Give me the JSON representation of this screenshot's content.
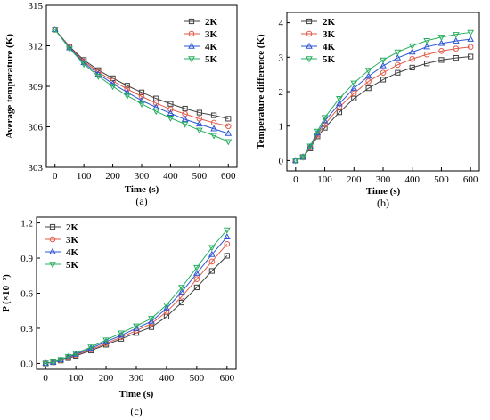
{
  "chart_data": [
    {
      "type": "line",
      "panel_label": "(a)",
      "xlabel": "Time (s)",
      "ylabel": "Average temperature (K)",
      "xlim": [
        -30,
        630
      ],
      "ylim": [
        303,
        315
      ],
      "xticks": [
        0,
        100,
        200,
        300,
        400,
        500,
        600
      ],
      "yticks": [
        303,
        306,
        309,
        312,
        315
      ],
      "ytick_labels": [
        "303",
        "306",
        "309",
        "312",
        "315"
      ],
      "legend_position": "top-right",
      "series": [
        {
          "name": "2K",
          "color": "#404040",
          "marker": "square",
          "x": [
            0,
            50,
            100,
            150,
            200,
            250,
            300,
            350,
            400,
            450,
            500,
            550,
            600
          ],
          "y": [
            313.2,
            311.95,
            310.95,
            310.2,
            309.6,
            309.05,
            308.55,
            308.1,
            307.7,
            307.35,
            307.05,
            306.85,
            306.6
          ]
        },
        {
          "name": "3K",
          "color": "#e05a4a",
          "marker": "circle",
          "x": [
            0,
            50,
            100,
            150,
            200,
            250,
            300,
            350,
            400,
            450,
            500,
            550,
            600
          ],
          "y": [
            313.2,
            311.9,
            310.85,
            310.05,
            309.4,
            308.8,
            308.25,
            307.75,
            307.3,
            306.95,
            306.6,
            306.3,
            306.05
          ]
        },
        {
          "name": "4K",
          "color": "#2b55d6",
          "marker": "triangle-up",
          "x": [
            0,
            50,
            100,
            150,
            200,
            250,
            300,
            350,
            400,
            450,
            500,
            550,
            600
          ],
          "y": [
            313.2,
            311.85,
            310.75,
            309.9,
            309.2,
            308.55,
            307.95,
            307.45,
            307.0,
            306.55,
            306.2,
            305.85,
            305.5
          ]
        },
        {
          "name": "5K",
          "color": "#27ae5f",
          "marker": "triangle-down",
          "x": [
            0,
            50,
            100,
            150,
            200,
            250,
            300,
            350,
            400,
            450,
            500,
            550,
            600
          ],
          "y": [
            313.2,
            311.8,
            310.65,
            309.75,
            309.0,
            308.3,
            307.7,
            307.15,
            306.65,
            306.2,
            305.75,
            305.35,
            304.9
          ]
        }
      ]
    },
    {
      "type": "line",
      "panel_label": "(b)",
      "xlabel": "Time (s)",
      "ylabel": "Temperature difference (K)",
      "xlim": [
        -30,
        630
      ],
      "ylim": [
        -0.3,
        4.3
      ],
      "xticks": [
        0,
        100,
        200,
        300,
        400,
        500,
        600
      ],
      "yticks": [
        0,
        1,
        2,
        3,
        4
      ],
      "ytick_labels": [
        "0",
        "1",
        "2",
        "3",
        "4"
      ],
      "legend_position": "top-left",
      "series": [
        {
          "name": "2K",
          "color": "#404040",
          "marker": "square",
          "x": [
            0,
            25,
            50,
            75,
            100,
            150,
            200,
            250,
            300,
            350,
            400,
            450,
            500,
            550,
            600
          ],
          "y": [
            0,
            0.1,
            0.35,
            0.7,
            0.95,
            1.4,
            1.8,
            2.1,
            2.35,
            2.55,
            2.7,
            2.82,
            2.92,
            2.98,
            3.02
          ]
        },
        {
          "name": "3K",
          "color": "#e05a4a",
          "marker": "circle",
          "x": [
            0,
            25,
            50,
            75,
            100,
            150,
            200,
            250,
            300,
            350,
            400,
            450,
            500,
            550,
            600
          ],
          "y": [
            0,
            0.1,
            0.38,
            0.75,
            1.05,
            1.55,
            1.95,
            2.3,
            2.55,
            2.78,
            2.95,
            3.08,
            3.18,
            3.25,
            3.3
          ]
        },
        {
          "name": "4K",
          "color": "#2b55d6",
          "marker": "triangle-up",
          "x": [
            0,
            25,
            50,
            75,
            100,
            150,
            200,
            250,
            300,
            350,
            400,
            450,
            500,
            550,
            600
          ],
          "y": [
            0,
            0.1,
            0.4,
            0.8,
            1.15,
            1.65,
            2.1,
            2.45,
            2.75,
            2.98,
            3.15,
            3.3,
            3.4,
            3.47,
            3.52
          ]
        },
        {
          "name": "5K",
          "color": "#27ae5f",
          "marker": "triangle-down",
          "x": [
            0,
            25,
            50,
            75,
            100,
            150,
            200,
            250,
            300,
            350,
            400,
            450,
            500,
            550,
            600
          ],
          "y": [
            0,
            0.1,
            0.42,
            0.85,
            1.25,
            1.8,
            2.25,
            2.62,
            2.92,
            3.15,
            3.33,
            3.48,
            3.58,
            3.66,
            3.72
          ]
        }
      ]
    },
    {
      "type": "line",
      "panel_label": "(c)",
      "xlabel": "Time (s)",
      "ylabel": "P (×10⁻⁵)",
      "xlim": [
        -30,
        630
      ],
      "ylim": [
        -0.05,
        1.25
      ],
      "xticks": [
        0,
        100,
        200,
        300,
        400,
        500,
        600
      ],
      "yticks": [
        0.0,
        0.3,
        0.6,
        0.9,
        1.2
      ],
      "ytick_labels": [
        "0.0",
        "0.3",
        "0.6",
        "0.9",
        "1.2"
      ],
      "legend_position": "top-left",
      "series": [
        {
          "name": "2K",
          "color": "#404040",
          "marker": "square",
          "x": [
            0,
            25,
            50,
            75,
            100,
            150,
            200,
            250,
            300,
            350,
            400,
            450,
            500,
            550,
            600
          ],
          "y": [
            0.0,
            0.01,
            0.025,
            0.045,
            0.065,
            0.11,
            0.16,
            0.21,
            0.26,
            0.31,
            0.4,
            0.52,
            0.65,
            0.79,
            0.92
          ]
        },
        {
          "name": "3K",
          "color": "#e05a4a",
          "marker": "circle",
          "x": [
            0,
            25,
            50,
            75,
            100,
            150,
            200,
            250,
            300,
            350,
            400,
            450,
            500,
            550,
            600
          ],
          "y": [
            0.0,
            0.01,
            0.027,
            0.05,
            0.072,
            0.12,
            0.17,
            0.225,
            0.28,
            0.34,
            0.44,
            0.57,
            0.72,
            0.87,
            1.02
          ]
        },
        {
          "name": "4K",
          "color": "#2b55d6",
          "marker": "triangle-up",
          "x": [
            0,
            25,
            50,
            75,
            100,
            150,
            200,
            250,
            300,
            350,
            400,
            450,
            500,
            550,
            600
          ],
          "y": [
            0.0,
            0.01,
            0.03,
            0.055,
            0.078,
            0.13,
            0.185,
            0.24,
            0.3,
            0.36,
            0.47,
            0.61,
            0.77,
            0.93,
            1.08
          ]
        },
        {
          "name": "5K",
          "color": "#27ae5f",
          "marker": "triangle-down",
          "x": [
            0,
            25,
            50,
            75,
            100,
            150,
            200,
            250,
            300,
            350,
            400,
            450,
            500,
            550,
            600
          ],
          "y": [
            0.0,
            0.012,
            0.033,
            0.06,
            0.085,
            0.14,
            0.2,
            0.26,
            0.32,
            0.385,
            0.5,
            0.65,
            0.82,
            0.99,
            1.14
          ]
        }
      ]
    }
  ]
}
